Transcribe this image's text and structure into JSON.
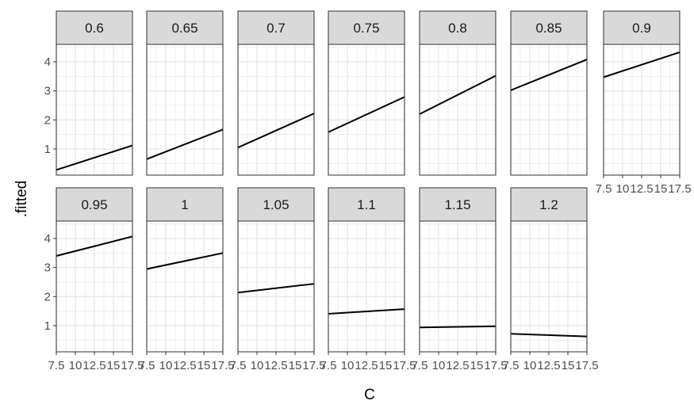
{
  "chart_data": {
    "type": "line",
    "layout": "faceted",
    "xlabel": "C",
    "ylabel": ".fitted",
    "xlim": [
      7.5,
      17.5
    ],
    "ylim": [
      0.1,
      4.6
    ],
    "x_ticks": [
      7.5,
      10,
      12.5,
      15,
      17.5
    ],
    "x_tick_labels": [
      "7.5",
      "10",
      "12.5",
      "15",
      "17.5"
    ],
    "y_ticks": [
      1,
      2,
      3,
      4
    ],
    "y_tick_labels": [
      "1",
      "2",
      "3",
      "4"
    ],
    "grid": true,
    "theme": "bw",
    "colors": {
      "strip_fill": "#d9d9d9",
      "line": "#000000",
      "grid": "#ebebeb",
      "panel_border": "#333333"
    },
    "panels": [
      {
        "label": "0.6",
        "x": [
          7.5,
          17.5
        ],
        "y": [
          0.28,
          1.12
        ]
      },
      {
        "label": "0.65",
        "x": [
          7.5,
          17.5
        ],
        "y": [
          0.65,
          1.67
        ]
      },
      {
        "label": "0.7",
        "x": [
          7.5,
          17.5
        ],
        "y": [
          1.05,
          2.22
        ]
      },
      {
        "label": "0.75",
        "x": [
          7.5,
          17.5
        ],
        "y": [
          1.58,
          2.79
        ]
      },
      {
        "label": "0.8",
        "x": [
          7.5,
          17.5
        ],
        "y": [
          2.2,
          3.52
        ]
      },
      {
        "label": "0.85",
        "x": [
          7.5,
          17.5
        ],
        "y": [
          3.02,
          4.08
        ]
      },
      {
        "label": "0.9",
        "x": [
          7.5,
          17.5
        ],
        "y": [
          3.47,
          4.33
        ]
      },
      {
        "label": "0.95",
        "x": [
          7.5,
          17.5
        ],
        "y": [
          3.4,
          4.07
        ]
      },
      {
        "label": "1",
        "x": [
          7.5,
          17.5
        ],
        "y": [
          2.95,
          3.5
        ]
      },
      {
        "label": "1.05",
        "x": [
          7.5,
          17.5
        ],
        "y": [
          2.14,
          2.44
        ]
      },
      {
        "label": "1.1",
        "x": [
          7.5,
          17.5
        ],
        "y": [
          1.41,
          1.57
        ]
      },
      {
        "label": "1.15",
        "x": [
          7.5,
          17.5
        ],
        "y": [
          0.94,
          0.98
        ]
      },
      {
        "label": "1.2",
        "x": [
          7.5,
          17.5
        ],
        "y": [
          0.72,
          0.63
        ]
      }
    ]
  }
}
